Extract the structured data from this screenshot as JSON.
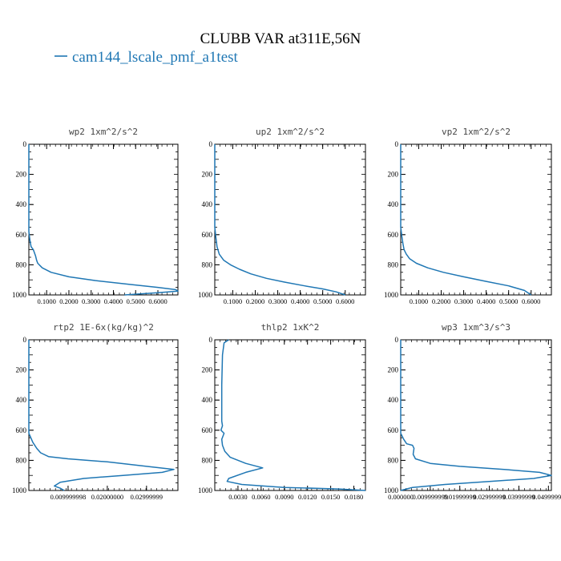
{
  "figure": {
    "title": "CLUBB VAR at311E,56N",
    "legend": {
      "label": "cam144_lscale_pmf_a1test",
      "color": "#1f77b4"
    }
  },
  "chart_data": [
    {
      "type": "line",
      "title": "wp2  1xm^2/s^2",
      "xlabel": "",
      "ylabel": "",
      "xlim": [
        0.02,
        0.69
      ],
      "ylim": [
        1000,
        0
      ],
      "xticks": [
        0.1,
        0.2,
        0.3,
        0.4,
        0.5,
        0.6
      ],
      "xtick_labels": [
        "0.1000",
        "0.2000",
        "0.3000",
        "0.4000",
        "0.5000",
        "0.6000"
      ],
      "yticks": [
        0,
        200,
        400,
        600,
        800,
        1000
      ],
      "ytick_labels": [
        "0",
        "200",
        "400",
        "600",
        "800",
        "1000"
      ],
      "series": [
        {
          "name": "cam144_lscale_pmf_a1test",
          "x": [
            0.02,
            0.02,
            0.02,
            0.025,
            0.03,
            0.04,
            0.05,
            0.055,
            0.06,
            0.08,
            0.12,
            0.2,
            0.32,
            0.47,
            0.6,
            0.68,
            0.69,
            0.6,
            0.45
          ],
          "y": [
            0,
            400,
            580,
            640,
            680,
            700,
            740,
            770,
            790,
            820,
            850,
            880,
            905,
            930,
            950,
            965,
            975,
            985,
            1000
          ]
        }
      ]
    },
    {
      "type": "line",
      "title": "up2  1xm^2/s^2",
      "xlabel": "",
      "ylabel": "",
      "xlim": [
        0.02,
        0.69
      ],
      "ylim": [
        1000,
        0
      ],
      "xticks": [
        0.1,
        0.2,
        0.3,
        0.4,
        0.5,
        0.6
      ],
      "xtick_labels": [
        "0.1000",
        "0.2000",
        "0.3000",
        "0.4000",
        "0.5000",
        "0.6000"
      ],
      "yticks": [
        0,
        200,
        400,
        600,
        800,
        1000
      ],
      "ytick_labels": [
        "0",
        "200",
        "400",
        "600",
        "800",
        "1000"
      ],
      "series": [
        {
          "name": "cam144_lscale_pmf_a1test",
          "x": [
            0.02,
            0.02,
            0.025,
            0.03,
            0.04,
            0.06,
            0.09,
            0.13,
            0.18,
            0.25,
            0.33,
            0.42,
            0.5,
            0.56,
            0.6
          ],
          "y": [
            0,
            550,
            620,
            680,
            730,
            770,
            800,
            830,
            860,
            890,
            915,
            940,
            960,
            980,
            1000
          ]
        }
      ]
    },
    {
      "type": "line",
      "title": "vp2  1xm^2/s^2",
      "xlabel": "",
      "ylabel": "",
      "xlim": [
        0.02,
        0.69
      ],
      "ylim": [
        1000,
        0
      ],
      "xticks": [
        0.1,
        0.2,
        0.3,
        0.4,
        0.5,
        0.6
      ],
      "xtick_labels": [
        "0.1000",
        "0.2000",
        "0.3000",
        "0.4000",
        "0.5000",
        "0.6000"
      ],
      "yticks": [
        0,
        200,
        400,
        600,
        800,
        1000
      ],
      "ytick_labels": [
        "0",
        "200",
        "400",
        "600",
        "800",
        "1000"
      ],
      "series": [
        {
          "name": "cam144_lscale_pmf_a1test",
          "x": [
            0.02,
            0.02,
            0.025,
            0.03,
            0.035,
            0.045,
            0.06,
            0.09,
            0.14,
            0.21,
            0.3,
            0.4,
            0.5,
            0.57,
            0.6
          ],
          "y": [
            0,
            550,
            610,
            660,
            700,
            730,
            760,
            790,
            820,
            850,
            880,
            910,
            940,
            970,
            1000
          ]
        }
      ]
    },
    {
      "type": "line",
      "title": "rtp2  1E-6x(kg/kg)^2",
      "xlabel": "",
      "ylabel": "",
      "xlim": [
        0.0,
        0.038
      ],
      "ylim": [
        1000,
        0
      ],
      "xticks": [
        0.00999999,
        0.01999999,
        0.02999999
      ],
      "xtick_labels": [
        "0.009999998",
        "0.02000000",
        "0.02999999"
      ],
      "yticks": [
        0,
        200,
        400,
        600,
        800,
        1000
      ],
      "ytick_labels": [
        "0",
        "200",
        "400",
        "600",
        "800",
        "1000"
      ],
      "series": [
        {
          "name": "cam144_lscale_pmf_a1test",
          "x": [
            0.0,
            0.0,
            0.001,
            0.002,
            0.003,
            0.005,
            0.01,
            0.02,
            0.03,
            0.037,
            0.034,
            0.024,
            0.014,
            0.008,
            0.0065,
            0.008,
            0.009
          ],
          "y": [
            0,
            620,
            680,
            720,
            750,
            775,
            790,
            810,
            840,
            860,
            880,
            900,
            920,
            945,
            970,
            985,
            1000
          ]
        }
      ]
    },
    {
      "type": "line",
      "title": "thlp2  1xK^2",
      "xlabel": "",
      "ylabel": "",
      "xlim": [
        0.0,
        0.0195
      ],
      "ylim": [
        1000,
        0
      ],
      "xticks": [
        0.003,
        0.006,
        0.009,
        0.012,
        0.015,
        0.018
      ],
      "xtick_labels": [
        "0.0030",
        "0.0060",
        "0.0090",
        "0.0120",
        "0.0150",
        "0.0180"
      ],
      "yticks": [
        0,
        200,
        400,
        600,
        800,
        1000
      ],
      "ytick_labels": [
        "0",
        "200",
        "400",
        "600",
        "800",
        "1000"
      ],
      "series": [
        {
          "name": "cam144_lscale_pmf_a1test",
          "x": [
            0.0018,
            0.0012,
            0.001,
            0.0009,
            0.0009,
            0.001,
            0.0008,
            0.0012,
            0.0009,
            0.001,
            0.0013,
            0.002,
            0.004,
            0.0062,
            0.004,
            0.0018,
            0.0016,
            0.0035,
            0.009,
            0.016,
            0.0195
          ],
          "y": [
            0,
            20,
            100,
            300,
            540,
            570,
            600,
            620,
            660,
            700,
            740,
            780,
            820,
            850,
            880,
            920,
            940,
            960,
            980,
            990,
            1000
          ]
        }
      ]
    },
    {
      "type": "line",
      "title": "wp3  1xm^3/s^3",
      "xlabel": "",
      "ylabel": "",
      "xlim": [
        0.0,
        0.051
      ],
      "ylim": [
        1000,
        0
      ],
      "xticks": [
        0.0,
        0.00999999,
        0.01999999,
        0.02999999,
        0.03999999,
        0.04999999
      ],
      "xtick_labels": [
        "0.000000",
        "0.009999999",
        "0.01999999",
        "0.02999999",
        "0.03999999",
        "0.04999994"
      ],
      "yticks": [
        0,
        200,
        400,
        600,
        800,
        1000
      ],
      "ytick_labels": [
        "0",
        "200",
        "400",
        "600",
        "800",
        "1000"
      ],
      "series": [
        {
          "name": "cam144_lscale_pmf_a1test",
          "x": [
            0.0,
            0.0,
            0.001,
            0.002,
            0.004,
            0.0045,
            0.0042,
            0.005,
            0.01,
            0.02,
            0.035,
            0.047,
            0.051,
            0.045,
            0.03,
            0.015,
            0.004,
            0.0
          ],
          "y": [
            0,
            620,
            660,
            690,
            700,
            720,
            760,
            790,
            820,
            840,
            860,
            880,
            900,
            920,
            940,
            960,
            980,
            1000
          ]
        }
      ]
    }
  ]
}
